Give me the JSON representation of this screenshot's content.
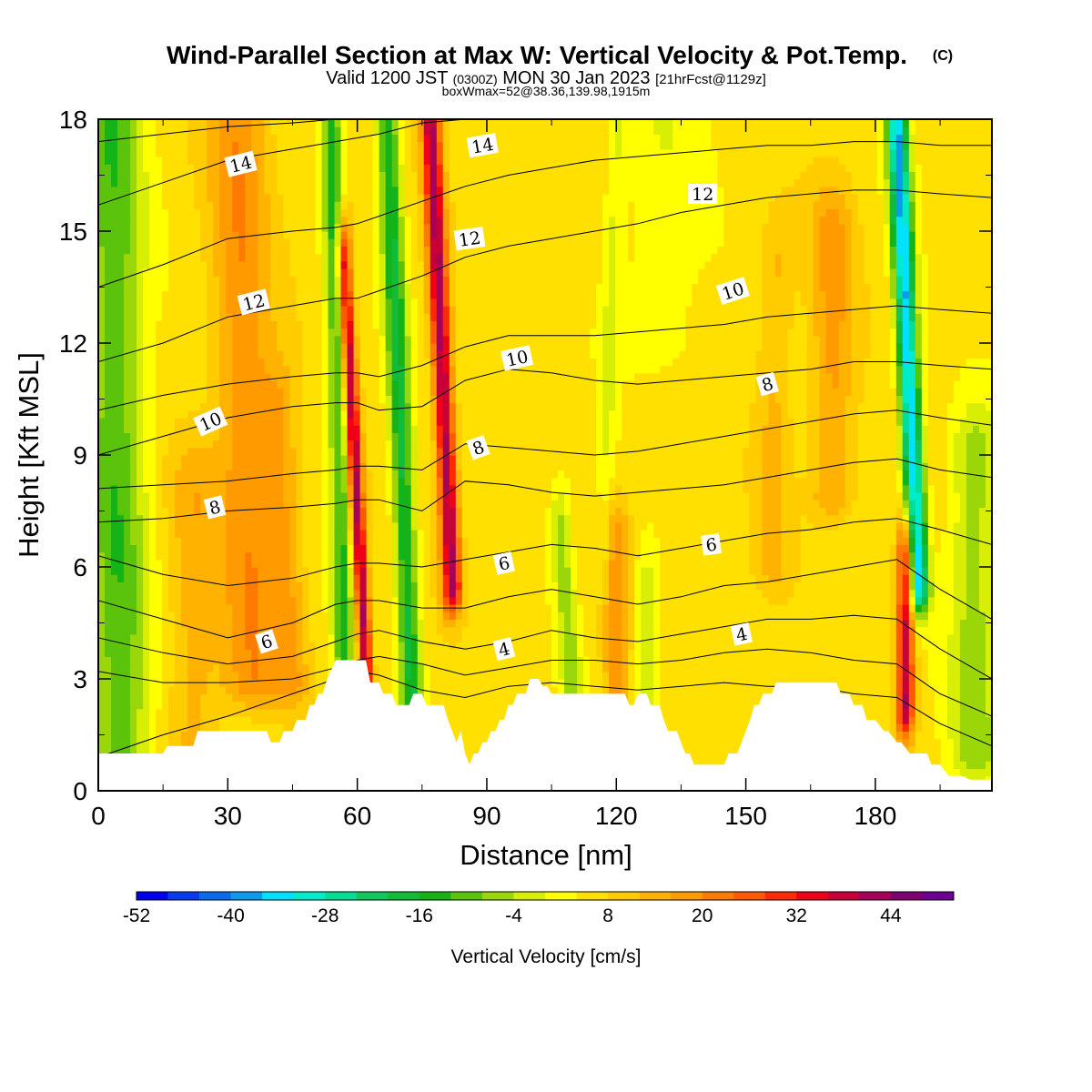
{
  "figure": {
    "title": "Wind-Parallel Section at Max W: Vertical Velocity & Pot.Temp.",
    "title_mark": "(C)",
    "valid_a": "Valid 1200 JST",
    "valid_b": "(0300Z)",
    "valid_c": "MON 30 Jan 2023",
    "valid_d": "[21hrFcst@1129z]",
    "box_info": "boxWmax=52@38.36,139.98,1915m"
  },
  "chart_data": {
    "type": "heatmap",
    "xlabel": "Distance [nm]",
    "ylabel": "Height [Kft MSL]",
    "xlim": [
      0,
      207
    ],
    "ylim": [
      0,
      18
    ],
    "x_ticks": [
      0,
      30,
      60,
      90,
      120,
      150,
      180
    ],
    "y_ticks": [
      0,
      3,
      6,
      9,
      12,
      15,
      18
    ],
    "grid": false,
    "colorbar": {
      "label": "Vertical Velocity [cm/s]",
      "levels": [
        -52,
        -48,
        -44,
        -40,
        -36,
        -32,
        -28,
        -24,
        -20,
        -16,
        -12,
        -8,
        -4,
        0,
        4,
        8,
        12,
        16,
        20,
        24,
        28,
        32,
        36,
        40,
        44,
        48
      ],
      "tick_labels": [
        "-52",
        "-40",
        "-28",
        "-16",
        "-4",
        "8",
        "20",
        "32",
        "44"
      ],
      "colors": [
        "#0000f0",
        "#0a3af0",
        "#0a6af0",
        "#0a9af0",
        "#00e1ff",
        "#00ebc9",
        "#03de95",
        "#0ec85e",
        "#10bc3a",
        "#14b31a",
        "#5bc30b",
        "#9bd708",
        "#d9ee05",
        "#ffff00",
        "#ffe000",
        "#ffcc00",
        "#ffb200",
        "#ff9a00",
        "#ff7a00",
        "#ff5a00",
        "#ff2a00",
        "#f00018",
        "#c8003a",
        "#a80058",
        "#80006e",
        "#6e0090"
      ]
    },
    "background_w": 6,
    "w_bands": [
      {
        "x_bottom": 5,
        "x_top": 3,
        "z0": 1.0,
        "z1": 18,
        "amp": -17,
        "width": 7
      },
      {
        "x_bottom": 22,
        "x_top": 22,
        "z0": 1.0,
        "z1": 8,
        "amp": 8,
        "width": 6
      },
      {
        "x_bottom": 45,
        "x_top": 42,
        "z0": 3.0,
        "z1": 10,
        "amp": 9,
        "width": 4
      },
      {
        "x_bottom": 36,
        "x_top": 32,
        "z0": 3.0,
        "z1": 18,
        "amp": 13,
        "width": 7
      },
      {
        "x_bottom": 57,
        "x_top": 54,
        "z0": 3.0,
        "z1": 18,
        "amp": -19,
        "width": 2.4
      },
      {
        "x_bottom": 62,
        "x_top": 57,
        "z0": 3.2,
        "z1": 14,
        "amp": 36,
        "width": 1.6
      },
      {
        "x_bottom": 73,
        "x_top": 67,
        "z0": 1.5,
        "z1": 18,
        "amp": -23,
        "width": 2.6
      },
      {
        "x_bottom": 82,
        "x_top": 77,
        "z0": 5.5,
        "z1": 18,
        "amp": 36,
        "width": 2.2
      },
      {
        "x_bottom": 110,
        "x_top": 107,
        "z0": 2.6,
        "z1": 7,
        "amp": -12,
        "width": 2.5
      },
      {
        "x_bottom": 120,
        "x_top": 120,
        "z0": 2.5,
        "z1": 6.5,
        "amp": 12,
        "width": 3
      },
      {
        "x_bottom": 127,
        "x_top": 127,
        "z0": 2.0,
        "z1": 5,
        "amp": -10,
        "width": 3
      },
      {
        "x_bottom": 117,
        "x_top": 120,
        "z0": 6,
        "z1": 18,
        "amp": -6,
        "width": 2
      },
      {
        "x_bottom": 156,
        "x_top": 157,
        "z0": 6,
        "z1": 14,
        "amp": 7,
        "width": 4
      },
      {
        "x_bottom": 170,
        "x_top": 170,
        "z0": 8,
        "z1": 15,
        "amp": 11,
        "width": 5
      },
      {
        "x_bottom": 187,
        "x_top": 187,
        "z0": 2.2,
        "z1": 6,
        "amp": 34,
        "width": 2
      },
      {
        "x_bottom": 190,
        "x_top": 185,
        "z0": 5.5,
        "z1": 18,
        "amp": -42,
        "width": 2.4
      },
      {
        "x_bottom": 203,
        "x_top": 203,
        "z0": 1,
        "z1": 9,
        "amp": -12,
        "width": 6
      },
      {
        "x_bottom": 130,
        "x_top": 130,
        "z0": 12,
        "z1": 18,
        "amp": -5,
        "width": 10
      }
    ],
    "terrain": {
      "x": [
        0,
        15,
        16,
        22,
        23,
        39,
        40,
        42,
        43,
        45,
        46,
        48,
        49,
        50,
        51,
        52,
        53,
        55,
        57,
        62,
        63,
        65,
        66,
        68,
        69,
        72,
        73,
        75,
        76,
        80,
        81,
        82,
        83,
        84,
        85,
        86,
        87,
        88,
        89,
        90,
        91,
        92,
        93,
        94,
        95,
        96,
        97,
        98,
        99,
        100,
        101,
        102,
        103,
        104,
        105,
        110,
        111,
        112,
        113,
        122,
        123,
        124,
        125,
        127,
        128,
        130,
        131,
        132,
        134,
        135,
        136,
        137,
        138,
        140,
        141,
        142,
        144,
        145,
        146,
        148,
        149,
        150,
        151,
        152,
        153,
        154,
        156,
        157,
        159,
        160,
        168,
        169,
        171,
        172,
        174,
        175,
        177,
        178,
        180,
        182,
        183,
        185,
        186,
        188,
        189,
        192,
        193,
        195,
        197,
        198,
        200,
        202,
        203,
        207
      ],
      "z": [
        1.0,
        1.0,
        1.2,
        1.2,
        1.6,
        1.6,
        1.3,
        1.3,
        1.6,
        1.6,
        1.9,
        1.9,
        2.3,
        2.3,
        2.6,
        2.6,
        3.0,
        3.5,
        3.5,
        3.5,
        2.9,
        2.9,
        2.6,
        2.6,
        2.3,
        2.3,
        2.6,
        2.6,
        2.3,
        2.3,
        1.9,
        1.6,
        1.3,
        1.6,
        1.0,
        0.7,
        1.0,
        1.0,
        1.3,
        1.3,
        1.6,
        1.6,
        1.9,
        1.9,
        2.3,
        2.3,
        2.6,
        2.6,
        2.6,
        3.0,
        3.0,
        3.0,
        2.8,
        2.8,
        2.6,
        2.6,
        2.6,
        2.6,
        2.6,
        2.6,
        2.3,
        2.3,
        2.6,
        2.6,
        2.3,
        2.3,
        1.9,
        1.6,
        1.6,
        1.3,
        1.0,
        1.0,
        0.7,
        0.7,
        0.7,
        0.7,
        0.7,
        0.7,
        1.0,
        1.0,
        1.3,
        1.6,
        1.9,
        2.3,
        2.3,
        2.6,
        2.6,
        2.9,
        2.9,
        2.9,
        2.9,
        2.9,
        2.9,
        2.6,
        2.6,
        2.3,
        2.3,
        1.9,
        1.9,
        1.6,
        1.6,
        1.3,
        1.3,
        1.0,
        1.0,
        1.0,
        0.7,
        0.7,
        0.4,
        0.4,
        0.4,
        0.3,
        0.3,
        0.3
      ]
    },
    "theta_contours": {
      "x": [
        0,
        15,
        30,
        45,
        55,
        60,
        65,
        75,
        85,
        95,
        105,
        115,
        125,
        135,
        145,
        155,
        165,
        175,
        185,
        195,
        207
      ],
      "levels": [
        {
          "value": 3,
          "z": [
            0.9,
            1.5,
            2.0,
            2.6,
            3.0,
            3.2,
            3.1,
            2.7,
            2.5,
            2.8,
            2.9,
            2.8,
            2.7,
            2.8,
            2.9,
            2.8,
            2.8,
            2.6,
            2.5,
            1.8,
            1.2
          ]
        },
        {
          "value": 4,
          "z": [
            3.2,
            2.9,
            2.9,
            3.0,
            3.3,
            3.5,
            3.6,
            3.4,
            3.1,
            3.3,
            3.5,
            3.5,
            3.4,
            3.5,
            3.7,
            3.8,
            3.7,
            3.5,
            3.4,
            2.6,
            2.0
          ]
        },
        {
          "value": 5,
          "z": [
            4.1,
            3.7,
            3.4,
            3.6,
            4.0,
            4.2,
            4.3,
            4.0,
            3.8,
            4.0,
            4.3,
            4.1,
            4.0,
            4.2,
            4.4,
            4.6,
            4.6,
            4.7,
            4.6,
            3.8,
            3.0
          ]
        },
        {
          "value": 6,
          "z": [
            5.1,
            4.6,
            4.1,
            4.5,
            5.0,
            5.1,
            5.1,
            4.9,
            4.9,
            5.2,
            5.4,
            5.2,
            5.0,
            5.2,
            5.5,
            5.6,
            5.8,
            6.0,
            6.2,
            5.4,
            4.6
          ]
        },
        {
          "value": 7,
          "z": [
            6.3,
            5.8,
            5.5,
            5.7,
            6.0,
            6.1,
            6.1,
            6.0,
            6.2,
            6.4,
            6.6,
            6.5,
            6.3,
            6.5,
            6.7,
            6.9,
            7.0,
            7.2,
            7.3,
            7.0,
            6.6
          ]
        },
        {
          "value": 8,
          "z": [
            7.2,
            7.3,
            7.5,
            7.6,
            7.7,
            7.8,
            7.8,
            7.5,
            8.3,
            8.2,
            8.0,
            7.9,
            8.0,
            8.1,
            8.2,
            8.4,
            8.6,
            8.8,
            8.9,
            8.6,
            8.4
          ]
        },
        {
          "value": 9,
          "z": [
            8.1,
            8.2,
            8.3,
            8.5,
            8.6,
            8.7,
            8.7,
            8.6,
            9.3,
            9.2,
            9.1,
            9.0,
            9.1,
            9.3,
            9.5,
            9.7,
            9.9,
            10.1,
            10.2,
            10.0,
            9.8
          ]
        },
        {
          "value": 10,
          "z": [
            9.0,
            9.5,
            10.0,
            10.3,
            10.4,
            10.4,
            10.2,
            10.3,
            11.0,
            11.3,
            11.2,
            11.0,
            10.9,
            11.0,
            11.1,
            11.2,
            11.3,
            11.5,
            11.5,
            11.4,
            11.3
          ]
        },
        {
          "value": 11,
          "z": [
            10.2,
            10.6,
            10.9,
            11.1,
            11.2,
            11.2,
            11.1,
            11.4,
            11.9,
            12.2,
            12.2,
            12.2,
            12.3,
            12.4,
            12.5,
            12.7,
            12.8,
            12.9,
            13.0,
            12.9,
            12.8
          ]
        },
        {
          "value": 12,
          "z": [
            11.5,
            12.0,
            12.7,
            13.0,
            13.2,
            13.2,
            13.4,
            13.8,
            14.3,
            14.6,
            14.8,
            15.0,
            15.2,
            15.5,
            15.7,
            15.9,
            16.0,
            16.1,
            16.1,
            16.0,
            15.9
          ]
        },
        {
          "value": 13,
          "z": [
            13.5,
            14.1,
            14.8,
            15.0,
            15.1,
            15.2,
            15.4,
            15.8,
            16.2,
            16.5,
            16.7,
            16.9,
            17.0,
            17.1,
            17.2,
            17.3,
            17.3,
            17.4,
            17.4,
            17.3,
            17.3
          ]
        },
        {
          "value": 14,
          "z": [
            15.7,
            16.3,
            16.9,
            17.2,
            17.4,
            17.5,
            17.6,
            17.9,
            18.0,
            18.0,
            18.0,
            18.0,
            18.0,
            18.0,
            18.0,
            18.0,
            18.0,
            18.0,
            18.0,
            18.0,
            18.0
          ]
        },
        {
          "value": 15,
          "z": [
            17.4,
            17.6,
            17.8,
            17.9,
            18.0,
            18.0,
            18.0,
            18.0,
            18.0,
            18.0,
            18.0,
            18.0,
            18.0,
            18.0,
            18.0,
            18.0,
            18.0,
            18.0,
            18.0,
            18.0,
            18.0
          ]
        }
      ]
    },
    "contour_labels": [
      {
        "text": "14",
        "x": 33,
        "z": 16.8,
        "angle": -14
      },
      {
        "text": "14",
        "x": 89,
        "z": 17.3,
        "angle": -10
      },
      {
        "text": "12",
        "x": 140,
        "z": 16.0,
        "angle": 0
      },
      {
        "text": "12",
        "x": 86,
        "z": 14.8,
        "angle": -8
      },
      {
        "text": "12",
        "x": 36,
        "z": 13.1,
        "angle": -14
      },
      {
        "text": "10",
        "x": 147,
        "z": 13.4,
        "angle": -18
      },
      {
        "text": "10",
        "x": 97,
        "z": 11.6,
        "angle": -12
      },
      {
        "text": "10",
        "x": 26,
        "z": 9.9,
        "angle": -24
      },
      {
        "text": "8",
        "x": 155,
        "z": 10.9,
        "angle": -16
      },
      {
        "text": "8",
        "x": 88,
        "z": 9.2,
        "angle": -20
      },
      {
        "text": "8",
        "x": 27,
        "z": 7.6,
        "angle": -14
      },
      {
        "text": "6",
        "x": 142,
        "z": 6.6,
        "angle": -8
      },
      {
        "text": "6",
        "x": 94,
        "z": 6.1,
        "angle": -12
      },
      {
        "text": "4",
        "x": 149,
        "z": 4.2,
        "angle": -12
      },
      {
        "text": "4",
        "x": 94,
        "z": 3.8,
        "angle": -14
      },
      {
        "text": "6",
        "x": 39,
        "z": 4.0,
        "angle": -18
      }
    ]
  }
}
